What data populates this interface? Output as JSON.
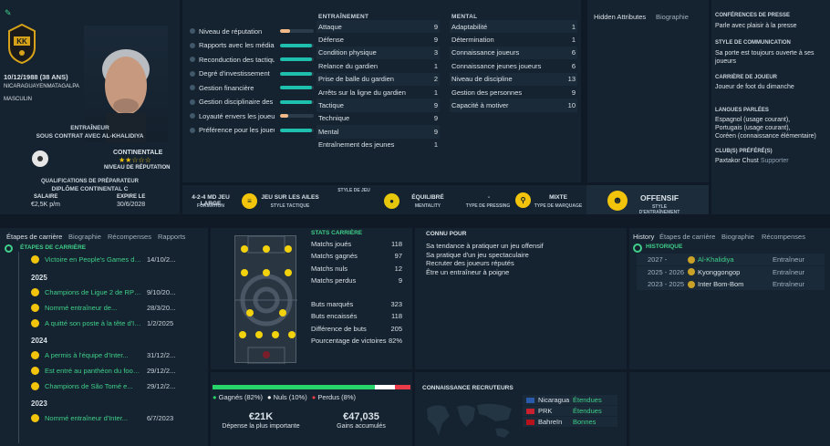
{
  "profile": {
    "dob": "10/12/1988 (38 ANS)",
    "nationality": "NICARAGUAYENMATAGALPA",
    "gender": "MASCULIN",
    "role": "ENTRAÎNEUR",
    "contract": "SOUS CONTRAT AVEC AL-KHALIDIYA",
    "reputation_title": "CONTINENTALE",
    "reputation_label": "NIVEAU DE RÉPUTATION",
    "stars": "★★☆☆☆",
    "qual_label": "QUALIFICATIONS DE PRÉPARATEUR",
    "qual_value": "DIPLÔME CONTINENTAL C",
    "salary_label": "SALAIRE",
    "salary": "€2,5K p/m",
    "expires_label": "EXPIRE LE",
    "expires": "30/6/2028",
    "badge_text": "KK"
  },
  "reputation": {
    "items": [
      {
        "label": "Niveau de réputation",
        "value": 0.28,
        "color": "#f0b987"
      },
      {
        "label": "Rapports avec les médias",
        "value": 0.95,
        "color": "#1fbfae"
      },
      {
        "label": "Reconduction des tactiques",
        "value": 0.95,
        "color": "#1fbfae"
      },
      {
        "label": "Degré d'investissement",
        "value": 0.95,
        "color": "#1fbfae"
      },
      {
        "label": "Gestion financière",
        "value": 0.95,
        "color": "#1fbfae"
      },
      {
        "label": "Gestion disciplinaire des joueurs",
        "value": 0.95,
        "color": "#1fbfae"
      },
      {
        "label": "Loyauté envers les joueurs",
        "value": 0.25,
        "color": "#f0b987"
      },
      {
        "label": "Préférence pour les joueurs",
        "value": 0.95,
        "color": "#1fbfae"
      }
    ]
  },
  "training": {
    "header": "ENTRAÎNEMENT",
    "items": [
      {
        "label": "Attaque",
        "value": "9"
      },
      {
        "label": "Défense",
        "value": "9"
      },
      {
        "label": "Condition physique",
        "value": "3"
      },
      {
        "label": "Relance du gardien",
        "value": "1"
      },
      {
        "label": "Prise de balle du gardien",
        "value": "2"
      },
      {
        "label": "Arrêts sur la ligne du gardien",
        "value": "1"
      },
      {
        "label": "Tactique",
        "value": "9"
      },
      {
        "label": "Technique",
        "value": "9"
      },
      {
        "label": "Mental",
        "value": "9"
      },
      {
        "label": "Entraînement des jeunes",
        "value": "1"
      }
    ]
  },
  "mental": {
    "header": "MENTAL",
    "items": [
      {
        "label": "Adaptabilité",
        "value": "1"
      },
      {
        "label": "Détermination",
        "value": "1"
      },
      {
        "label": "Connaissance joueurs",
        "value": "6"
      },
      {
        "label": "Connaissance jeunes joueurs",
        "value": "6"
      },
      {
        "label": "Niveau de discipline",
        "value": "13"
      },
      {
        "label": "Gestion des personnes",
        "value": "9"
      },
      {
        "label": "Capacité à motiver",
        "value": "10"
      }
    ]
  },
  "hidden_tabs": [
    "Hidden Attributes",
    "Biographie"
  ],
  "info": {
    "press_h": "CONFÉRENCES DE PRESSE",
    "press_v": "Parle avec plaisir à la presse",
    "comm_h": "STYLE DE COMMUNICATION",
    "comm_v": "Sa porte est toujours ouverte à ses joueurs",
    "career_h": "CARRIÈRE DE JOUEUR",
    "career_v": "Joueur de foot du dimanche",
    "lang_h": "LANGUES PARLÉES",
    "lang_v1": "Espagnol (usage courant),",
    "lang_v2": "Portugais (usage courant),",
    "lang_v3": "Coréen (connaissance élémentaire)",
    "club_h": "CLUB(S) PRÉFÉRÉ(S)",
    "club_name": "Paxtakor Chust",
    "club_rel": "Supporter"
  },
  "tactics": {
    "style_label": "STYLE DE JEU",
    "formation": "4-2-4 MD JEU LARGE",
    "formation_sub": "FORMATION",
    "tactic": "JEU SUR LES AILES",
    "tactic_sub": "STYLE TACTIQUE",
    "mentality": "ÉQUILIBRÉ",
    "mentality_sub": "MENTALITY",
    "pressing": "-",
    "pressing_sub": "TYPE DE PRESSING",
    "marking": "MIXTE",
    "marking_sub": "TYPE DE MARQUAGE",
    "training": "OFFENSIF",
    "training_sub": "STYLE D'ENTRAÎNEMENT"
  },
  "career": {
    "tabs": [
      "Étapes de carrière",
      "Biographie",
      "Récompenses",
      "Rapports"
    ],
    "header": "ÉTAPES DE CARRIÈRE",
    "items": [
      {
        "text": "Victoire en People's Games de...",
        "date": "14/10/2..."
      }
    ],
    "years": [
      {
        "year": "2025",
        "items": [
          {
            "text": "Champions de Ligue 2 de RPD de...",
            "date": "9/10/20..."
          },
          {
            "text": "Nommé entraîneur de...",
            "date": "28/3/20..."
          },
          {
            "text": "A quitté son poste à la tête d'Inter...",
            "date": "1/2/2025"
          }
        ]
      },
      {
        "year": "2024",
        "items": [
          {
            "text": "A permis à l'équipe d'Inter...",
            "date": "31/12/2..."
          },
          {
            "text": "Est entré au panthéon du football...",
            "date": "29/12/2..."
          },
          {
            "text": "Champions de São Tomé e...",
            "date": "29/12/2..."
          }
        ]
      },
      {
        "year": "2023",
        "items": [
          {
            "text": "Nommé entraîneur d'Inter...",
            "date": "6/7/2023"
          }
        ]
      }
    ]
  },
  "stats": {
    "header": "STATS CARRIÈRE",
    "rows": [
      {
        "label": "Matchs joués",
        "value": "118"
      },
      {
        "label": "Matchs gagnés",
        "value": "97"
      },
      {
        "label": "Matchs nuls",
        "value": "12"
      },
      {
        "label": "Matchs perdus",
        "value": "9"
      },
      {
        "label": "Buts marqués",
        "value": "323"
      },
      {
        "label": "Buts encaissés",
        "value": "118"
      },
      {
        "label": "Différence de buts",
        "value": "205"
      },
      {
        "label": "Pourcentage de victoires",
        "value": "82%"
      }
    ]
  },
  "connu": {
    "header": "CONNU POUR",
    "items": [
      "Sa tendance à pratiquer un jeu offensif",
      "Sa pratique d'un jeu spectaculaire",
      "Recruter des joueurs réputés",
      "Être un entraîneur à poigne"
    ]
  },
  "history": {
    "tabs": [
      "History",
      "Étapes de carrière",
      "Biographie",
      "Récompenses"
    ],
    "header": "HISTORIQUE",
    "rows": [
      {
        "years": "2027 -",
        "club": "Al-Khalidiya",
        "role": "Entraîneur"
      },
      {
        "years": "2025 - 2026",
        "club": "Kyonggongop",
        "role": "Entraîneur"
      },
      {
        "years": "2023 - 2025",
        "club": "Inter Bom-Bom",
        "role": "Entraîneur"
      }
    ]
  },
  "results": {
    "win": 0.82,
    "draw": 0.1,
    "loss": 0.08,
    "win_label": "Gagnés (82%)",
    "draw_label": "Nuls (10%)",
    "loss_label": "Perdus (8%)",
    "spend": "€21K",
    "spend_label": "Dépense la plus importante",
    "earn": "€47,035",
    "earn_label": "Gains accumulés"
  },
  "scout": {
    "header": "CONNAISSANCE RECRUTEURS",
    "rows": [
      {
        "country": "Nicaragua",
        "level": "Étendues"
      },
      {
        "country": "PRK",
        "level": "Étendues"
      },
      {
        "country": "Bahreïn",
        "level": "Bonnes"
      }
    ]
  }
}
